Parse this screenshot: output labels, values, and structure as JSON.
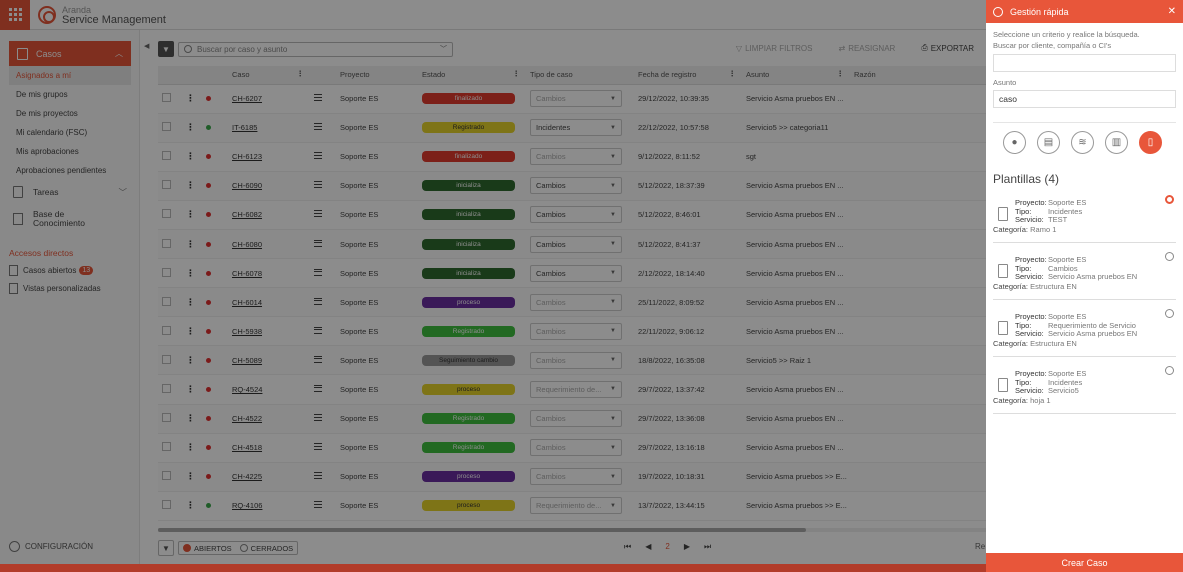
{
  "app": {
    "brand_line1": "Aranda",
    "brand_line2": "Service Management"
  },
  "sidebar": {
    "header": "Casos",
    "items": [
      "Asignados a mí",
      "De mis grupos",
      "De mis proyectos",
      "Mi calendario (FSC)",
      "Mis aprobaciones",
      "Aprobaciones pendientes"
    ],
    "tareas": "Tareas",
    "kb_line1": "Base de",
    "kb_line2": "Conocimiento",
    "shortcuts_title": "Accesos directos",
    "shortcuts": [
      {
        "label": "Casos abiertos",
        "badge": "13"
      },
      {
        "label": "Vistas personalizadas"
      }
    ],
    "config": "CONFIGURACIÓN"
  },
  "toolbar": {
    "search_placeholder": "Buscar por caso y asunto",
    "clear_filters": "LIMPIAR FILTROS",
    "reassign": "REASIGNAR",
    "export": "EXPORTAR"
  },
  "table": {
    "headers": {
      "case": "Caso",
      "project": "Proyecto",
      "state": "Estado",
      "type": "Tipo de caso",
      "date": "Fecha de registro",
      "subject": "Asunto",
      "reason": "Razón"
    },
    "rows": [
      {
        "dot": "#e03030",
        "case": "CH-6207",
        "project": "Soporte ES",
        "state": "finalizado",
        "state_color": "#e23b2e",
        "type": "Cambios",
        "type_dark": false,
        "date": "29/12/2022, 10:39:35",
        "subject": "Servicio Asma pruebos EN ..."
      },
      {
        "dot": "#3aa84a",
        "case": "IT-6185",
        "project": "Soporte ES",
        "state": "Registrado",
        "state_color": "#e6d32a",
        "type": "Incidentes",
        "type_dark": true,
        "date": "22/12/2022, 10:57:58",
        "subject": "Servicio5 >> categoria11"
      },
      {
        "dot": "#e03030",
        "case": "CH-6123",
        "project": "Soporte ES",
        "state": "finalizado",
        "state_color": "#e23b2e",
        "type": "Cambios",
        "type_dark": false,
        "date": "9/12/2022, 8:11:52",
        "subject": "sgt"
      },
      {
        "dot": "#e03030",
        "case": "CH-6090",
        "project": "Soporte ES",
        "state": "inicializa",
        "state_color": "#2f6b2f",
        "type": "Cambios",
        "type_dark": true,
        "date": "5/12/2022, 18:37:39",
        "subject": "Servicio Asma pruebos EN ..."
      },
      {
        "dot": "#e03030",
        "case": "CH-6082",
        "project": "Soporte ES",
        "state": "inicializa",
        "state_color": "#2f6b2f",
        "type": "Cambios",
        "type_dark": true,
        "date": "5/12/2022, 8:46:01",
        "subject": "Servicio Asma pruebos EN ..."
      },
      {
        "dot": "#e03030",
        "case": "CH-6080",
        "project": "Soporte ES",
        "state": "inicializa",
        "state_color": "#2f6b2f",
        "type": "Cambios",
        "type_dark": true,
        "date": "5/12/2022, 8:41:37",
        "subject": "Servicio Asma pruebos EN ..."
      },
      {
        "dot": "#e03030",
        "case": "CH-6078",
        "project": "Soporte ES",
        "state": "inicializa",
        "state_color": "#2f6b2f",
        "type": "Cambios",
        "type_dark": true,
        "date": "2/12/2022, 18:14:40",
        "subject": "Servicio Asma pruebos EN ..."
      },
      {
        "dot": "#e03030",
        "case": "CH-6014",
        "project": "Soporte ES",
        "state": "proceso",
        "state_color": "#6a2fa0",
        "type": "Cambios",
        "type_dark": false,
        "date": "25/11/2022, 8:09:52",
        "subject": "Servicio Asma pruebos EN ..."
      },
      {
        "dot": "#e03030",
        "case": "CH-5938",
        "project": "Soporte ES",
        "state": "Registrado",
        "state_color": "#3fbf3f",
        "type": "Cambios",
        "type_dark": false,
        "date": "22/11/2022, 9:06:12",
        "subject": "Servicio Asma pruebos EN ..."
      },
      {
        "dot": "#e03030",
        "case": "CH-5089",
        "project": "Soporte ES",
        "state": "Seguimiento cambio",
        "state_color": "#9a9a9a",
        "type": "Cambios",
        "type_dark": false,
        "date": "18/8/2022, 16:35:08",
        "subject": "Servicio5 >> Raiz 1"
      },
      {
        "dot": "#e03030",
        "case": "RQ-4524",
        "project": "Soporte ES",
        "state": "proceso",
        "state_color": "#e6d32a",
        "type": "Requerimiento de...",
        "type_dark": false,
        "date": "29/7/2022, 13:37:42",
        "subject": "Servicio Asma pruebos EN ..."
      },
      {
        "dot": "#e03030",
        "case": "CH-4522",
        "project": "Soporte ES",
        "state": "Registrado",
        "state_color": "#3fbf3f",
        "type": "Cambios",
        "type_dark": false,
        "date": "29/7/2022, 13:36:08",
        "subject": "Servicio Asma pruebos EN ..."
      },
      {
        "dot": "#e03030",
        "case": "CH-4518",
        "project": "Soporte ES",
        "state": "Registrado",
        "state_color": "#3fbf3f",
        "type": "Cambios",
        "type_dark": false,
        "date": "29/7/2022, 13:16:18",
        "subject": "Servicio Asma pruebos EN ..."
      },
      {
        "dot": "#e03030",
        "case": "CH-4225",
        "project": "Soporte ES",
        "state": "proceso",
        "state_color": "#6a2fa0",
        "type": "Cambios",
        "type_dark": false,
        "date": "19/7/2022, 10:18:31",
        "subject": "Servicio Asma pruebos >> E..."
      },
      {
        "dot": "#3aa84a",
        "case": "RQ-4106",
        "project": "Soporte ES",
        "state": "proceso",
        "state_color": "#e6d32a",
        "type": "Requerimiento de...",
        "type_dark": false,
        "date": "13/7/2022, 13:44:15",
        "subject": "Servicio Asma pruebos >> E..."
      }
    ]
  },
  "footer": {
    "open": "ABIERTOS",
    "closed": "CERRADOS",
    "page": "2",
    "records_prefix": "Re"
  },
  "panel": {
    "title": "Gestión rápida",
    "desc_line1": "Seleccione un criterio y realice la búsqueda.",
    "desc_line2": "Buscar por cliente, compañía o CI's",
    "client_value": "",
    "subject_label": "Asunto",
    "subject_value": "caso",
    "templates_title": "Plantillas (4)",
    "labels": {
      "project": "Proyecto:",
      "type": "Tipo:",
      "service": "Servicio:",
      "category": "Categoría:"
    },
    "templates": [
      {
        "project": "Soporte ES",
        "type": "Incidentes",
        "service": "TEST",
        "category": "Ramo 1",
        "selected": true
      },
      {
        "project": "Soporte ES",
        "type": "Cambios",
        "service": "Servicio Asma pruebos EN",
        "category": "Estructura EN",
        "selected": false
      },
      {
        "project": "Soporte ES",
        "type": "Requerimiento de Servicio",
        "service": "Servicio Asma pruebos EN",
        "category": "Estructura EN",
        "selected": false
      },
      {
        "project": "Soporte ES",
        "type": "Incidentes",
        "service": "Servicio5",
        "category": "hoja 1",
        "selected": false
      }
    ],
    "create_button": "Crear Caso"
  },
  "colors": {
    "accent": "#e8563a"
  }
}
